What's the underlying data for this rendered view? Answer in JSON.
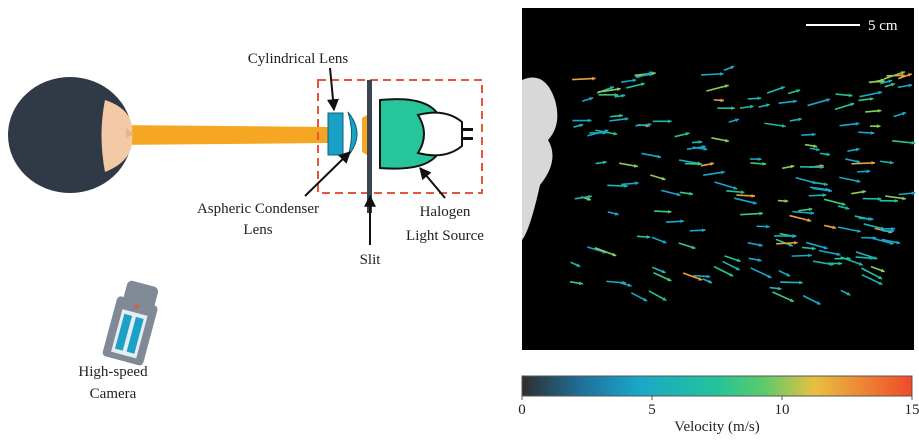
{
  "diagram": {
    "labels": {
      "cylindrical_lens": "Cylindrical Lens",
      "aspheric_lens": [
        "Aspheric Condenser",
        "Lens"
      ],
      "slit": "Slit",
      "halogen": [
        "Halogen",
        "Light Source"
      ],
      "camera": [
        "High-speed",
        "Camera"
      ]
    }
  },
  "piv": {
    "scale_bar": "5 cm"
  },
  "colorbar": {
    "label": "Velocity (m/s)",
    "lim": [
      0,
      15
    ],
    "ticks": [
      0,
      5,
      10,
      15
    ]
  }
}
